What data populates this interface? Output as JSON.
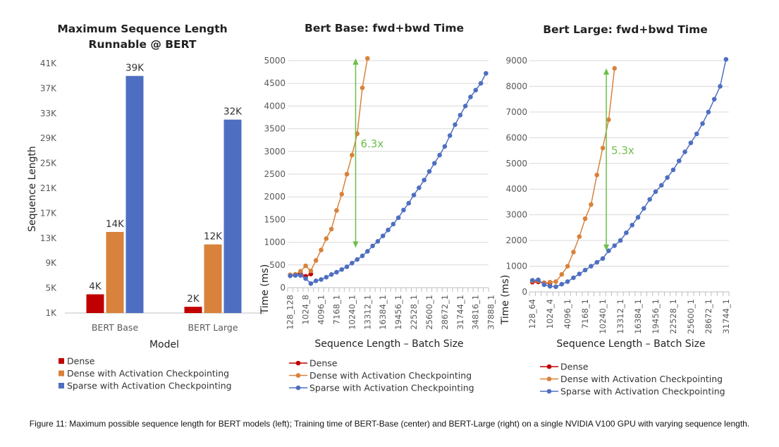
{
  "colors": {
    "dense": "#c00000",
    "dense_ckpt": "#d9823b",
    "sparse": "#4e6fc1",
    "annotation": "#6cbf4a",
    "grid": "#d9d9d9",
    "axis": "#bfbfbf",
    "text": "#333333",
    "tick": "#595959"
  },
  "caption": "Figure 11: Maximum possible sequence length for BERT models (left); Training time of BERT-Base (center) and BERT-Large (right) on a single NVIDIA V100 GPU with varying sequence length.",
  "chart_data": [
    {
      "type": "bar",
      "title": "Maximum Sequence Length Runnable @ BERT",
      "title_lines": [
        "Maximum Sequence Length",
        "Runnable @ BERT"
      ],
      "xlabel": "Model",
      "ylabel": "Sequence Length",
      "categories": [
        "BERT Base",
        "BERT Large"
      ],
      "yticks": [
        "1K",
        "5K",
        "9K",
        "13K",
        "17K",
        "21K",
        "25K",
        "29K",
        "33K",
        "37K",
        "41K"
      ],
      "ylim": [
        1000,
        41000
      ],
      "grid": false,
      "legend_position": "bottom",
      "series": [
        {
          "name": "Dense",
          "values": [
            4000,
            2000
          ],
          "labels": [
            "4K",
            "2K"
          ]
        },
        {
          "name": "Dense with Activation Checkpointing",
          "values": [
            14000,
            12000
          ],
          "labels": [
            "14K",
            "12K"
          ]
        },
        {
          "name": "Sparse with Activation Checkpointing",
          "values": [
            39000,
            32000
          ],
          "labels": [
            "39K",
            "32K"
          ]
        }
      ]
    },
    {
      "type": "line",
      "title": "Bert Base: fwd+bwd Time",
      "xlabel": "Sequence Length – Batch Size",
      "ylabel": "Time (ms)",
      "ylim": [
        0,
        5000
      ],
      "yticks": [
        "0",
        "500",
        "1000",
        "1500",
        "2000",
        "2500",
        "3000",
        "3500",
        "4000",
        "4500",
        "5000"
      ],
      "x_tick_labels": [
        "128_128",
        "1024_8",
        "4096_1",
        "7168_1",
        "10240_1",
        "13312_1",
        "16384_1",
        "19456_1",
        "22528_1",
        "25600_1",
        "28672_1",
        "31744_1",
        "34816_1",
        "37888_1"
      ],
      "x_positions": 39,
      "grid": false,
      "legend_position": "bottom",
      "annotation": {
        "text": "6.3x",
        "from": [
          12.7,
          5050
        ],
        "to": [
          12.7,
          880
        ]
      },
      "series": [
        {
          "name": "Dense",
          "x": [
            0,
            1,
            2,
            3,
            4
          ],
          "y": [
            280,
            290,
            310,
            250,
            300
          ]
        },
        {
          "name": "Dense with Activation Checkpointing",
          "x": [
            0,
            1,
            2,
            3,
            4,
            5,
            6,
            7,
            8,
            9,
            10,
            11,
            12,
            13
          ],
          "y": [
            280,
            290,
            360,
            480,
            370,
            600,
            830,
            1080,
            1290,
            1700,
            2060,
            2500,
            2920,
            3390
          ]
        },
        {
          "name": "Sparse with Activation Checkpointing",
          "x": [
            0,
            1,
            2,
            3,
            4,
            5,
            6,
            7,
            8,
            9,
            10,
            11,
            12,
            13,
            14,
            15,
            16,
            17,
            18,
            19,
            20,
            21,
            22,
            23,
            24,
            25,
            26,
            27,
            28,
            29,
            30,
            31,
            32,
            33,
            34,
            35,
            36,
            37,
            38
          ],
          "y": [
            260,
            270,
            270,
            200,
            90,
            150,
            180,
            230,
            290,
            340,
            400,
            460,
            540,
            620,
            700,
            800,
            920,
            1020,
            1140,
            1270,
            1400,
            1540,
            1710,
            1860,
            2040,
            2200,
            2370,
            2560,
            2740,
            2920,
            3110,
            3350,
            3590,
            3800,
            4000,
            4200,
            4350,
            4500,
            4720
          ]
        }
      ],
      "extra_points": [
        {
          "series": "Dense with Activation Checkpointing",
          "x": [
            14,
            15
          ],
          "y": [
            4400,
            5050
          ]
        }
      ]
    },
    {
      "type": "line",
      "title": "Bert Large: fwd+bwd Time",
      "xlabel": "Sequence Length – Batch Size",
      "ylabel": "Time (ms)",
      "ylim": [
        0,
        9000
      ],
      "yticks": [
        "0",
        "1000",
        "2000",
        "3000",
        "4000",
        "5000",
        "6000",
        "7000",
        "8000",
        "9000"
      ],
      "x_tick_labels": [
        "128_64",
        "1024_4",
        "4096_1",
        "7168_1",
        "10240_1",
        "13312_1",
        "16384_1",
        "19456_1",
        "22528_1",
        "25600_1",
        "28672_1",
        "31744_1"
      ],
      "x_positions": 34,
      "grid": false,
      "legend_position": "bottom",
      "annotation": {
        "text": "5.3x",
        "from": [
          12.6,
          8700
        ],
        "to": [
          12.6,
          1600
        ]
      },
      "series": [
        {
          "name": "Dense",
          "x": [
            0,
            1,
            2,
            3
          ],
          "y": [
            380,
            390,
            350,
            330
          ]
        },
        {
          "name": "Dense with Activation Checkpointing",
          "x": [
            0,
            1,
            2,
            3,
            4,
            5,
            6,
            7,
            8,
            9,
            10,
            11,
            12,
            13
          ],
          "y": [
            420,
            430,
            330,
            380,
            400,
            680,
            1000,
            1550,
            2150,
            2850,
            3400,
            4550,
            5600,
            6700
          ]
        },
        {
          "name": "Sparse with Activation Checkpointing",
          "x": [
            0,
            1,
            2,
            3,
            4,
            5,
            6,
            7,
            8,
            9,
            10,
            11,
            12,
            13,
            14,
            15,
            16,
            17,
            18,
            19,
            20,
            21,
            22,
            23,
            24,
            25,
            26,
            27,
            28,
            29,
            30,
            31,
            32,
            33
          ],
          "y": [
            450,
            470,
            280,
            220,
            200,
            300,
            400,
            550,
            700,
            850,
            1000,
            1150,
            1300,
            1600,
            1800,
            2000,
            2300,
            2600,
            2900,
            3250,
            3600,
            3900,
            4150,
            4450,
            4750,
            5100,
            5450,
            5800,
            6150,
            6550,
            7000,
            7500,
            8000,
            9050
          ]
        }
      ],
      "extra_points": [
        {
          "series": "Dense with Activation Checkpointing",
          "x": [
            14
          ],
          "y": [
            8700
          ]
        }
      ]
    }
  ]
}
